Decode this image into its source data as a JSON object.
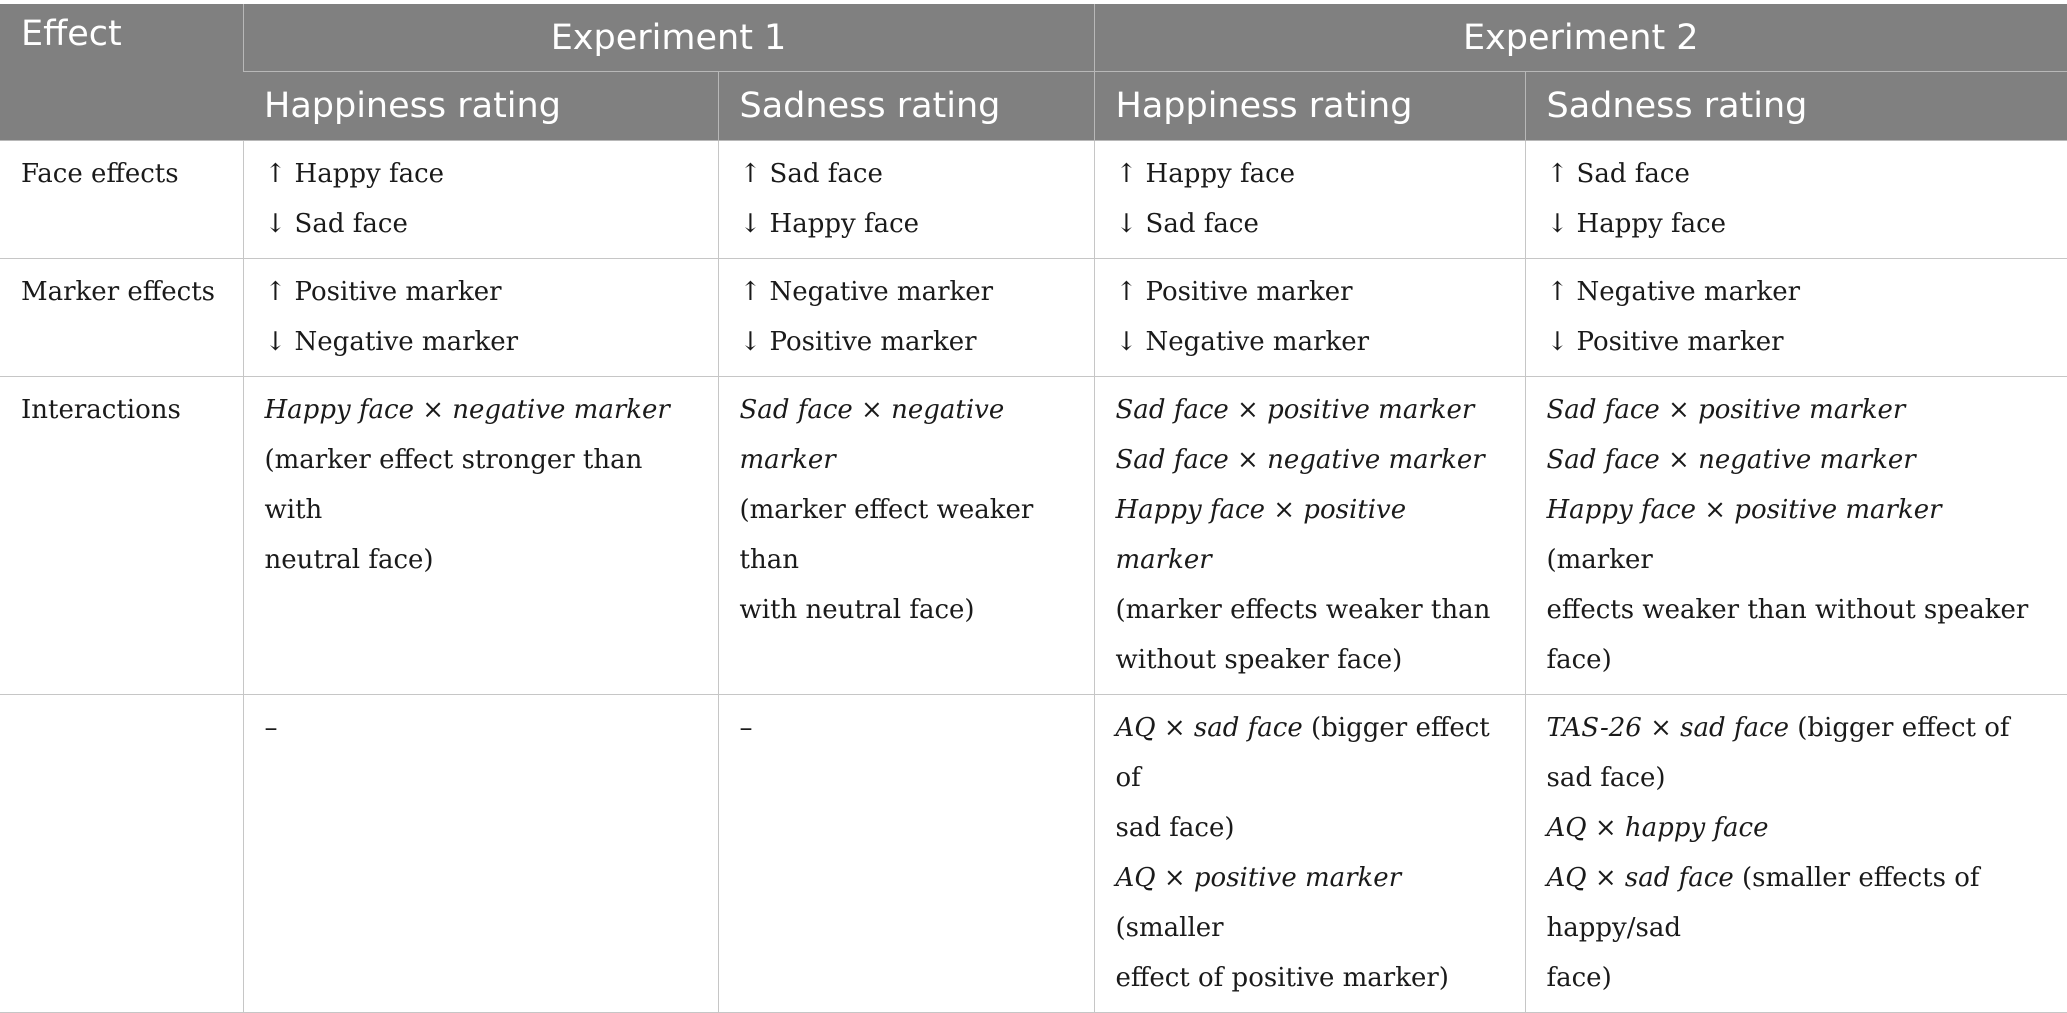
{
  "header": {
    "effect": "Effect",
    "experiment1": "Experiment 1",
    "experiment2": "Experiment 2",
    "happiness_rating": "Happiness rating",
    "sadness_rating": "Sadness rating"
  },
  "rows": {
    "face": {
      "label": "Face effects",
      "e1_happy": [
        "↑ Happy face",
        "↓ Sad face"
      ],
      "e1_sad": [
        "↑ Sad face",
        "↓ Happy face"
      ],
      "e2_happy": [
        "↑ Happy face",
        "↓ Sad face"
      ],
      "e2_sad": [
        "↑ Sad face",
        "↓ Happy face"
      ]
    },
    "marker": {
      "label": "Marker effects",
      "e1_happy": [
        "↑ Positive marker",
        "↓ Negative marker"
      ],
      "e1_sad": [
        "↑ Negative marker",
        "↓ Positive marker"
      ],
      "e2_happy": [
        "↑ Positive marker",
        "↓ Negative marker"
      ],
      "e2_sad": [
        "↑ Negative marker",
        "↓ Positive marker"
      ]
    },
    "interactions": {
      "label": "Interactions",
      "e1_happy": {
        "italic": "Happy face × negative marker",
        "l2": "(marker effect stronger than with",
        "l3": "neutral face)"
      },
      "e1_sad": {
        "italic": "Sad face × negative marker",
        "l2": "(marker effect weaker than",
        "l3": "with neutral face)"
      },
      "e2_happy": {
        "i1": "Sad face × positive marker",
        "i2": "Sad face × negative marker",
        "i3": "Happy face × positive marker",
        "l4": "(marker effects weaker than",
        "l5": "without speaker face)"
      },
      "e2_sad": {
        "i1": "Sad face × positive marker",
        "i2": "Sad face × negative marker",
        "i3": "Happy face × positive marker",
        "i3_tail": " (marker",
        "l4": "effects weaker than without speaker face)"
      }
    },
    "traits": {
      "label": "",
      "e1_happy": "–",
      "e1_sad": "–",
      "e2_happy": {
        "a_italic": "AQ × sad face",
        "a_tail": " (bigger effect of",
        "a_l2": "sad face)",
        "b_italic": "AQ × positive marker",
        "b_tail": " (smaller",
        "b_l2": "effect of positive marker)"
      },
      "e2_sad": {
        "a_italic": "TAS-26 × sad face",
        "a_tail": " (bigger effect of sad face)",
        "b_italic": "AQ × happy face",
        "c_italic": "AQ × sad face",
        "c_tail": " (smaller effects of happy/sad",
        "c_l2": "face)"
      }
    }
  }
}
